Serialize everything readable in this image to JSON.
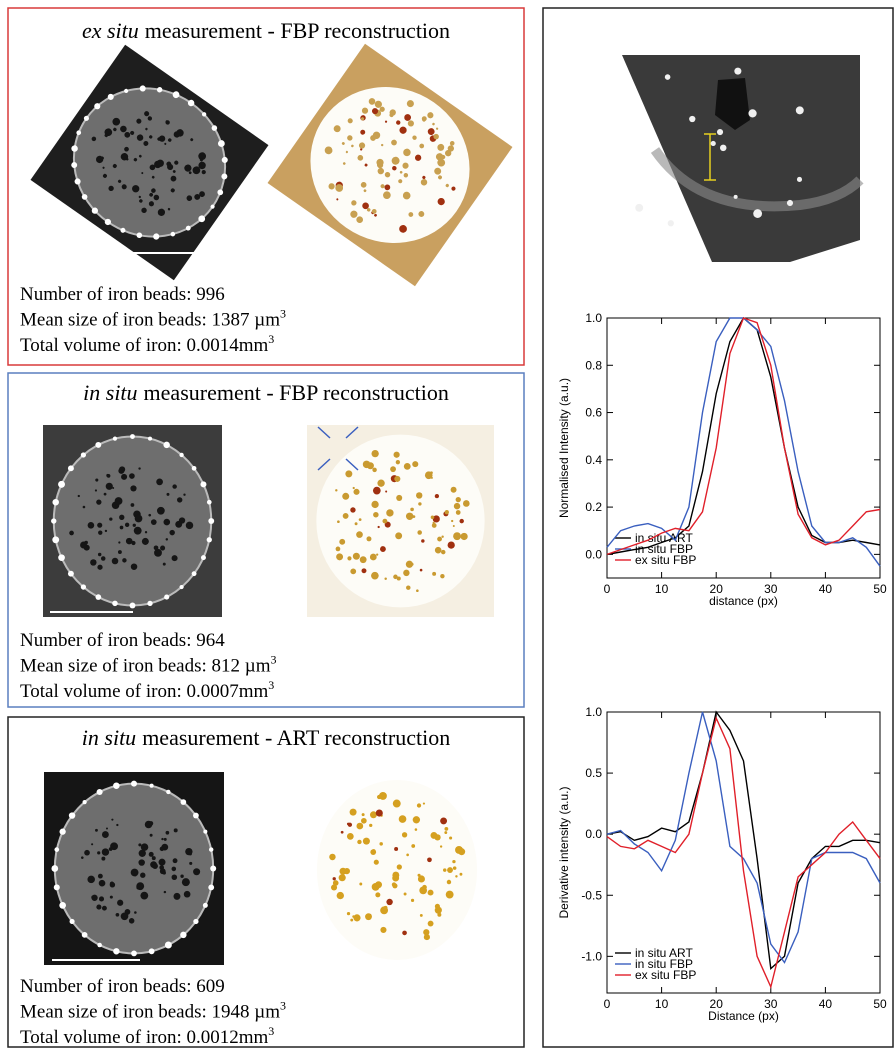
{
  "panels": [
    {
      "title_italic": "ex situ",
      "title_rest": "measurement - FBP reconstruction",
      "stats": [
        {
          "text": "Number of iron beads: 996"
        },
        {
          "text": "Mean size of iron beads: 1387 µm",
          "sup": "3"
        },
        {
          "text": "Total volume of iron: 0.0014mm",
          "sup": "3"
        }
      ]
    },
    {
      "title_italic": "in situ",
      "title_rest": "measurement - FBP reconstruction",
      "stats": [
        {
          "text": "Number of iron beads: 964"
        },
        {
          "text": "Mean size of iron beads: 812 µm",
          "sup": "3"
        },
        {
          "text": "Total volume of iron: 0.0007mm",
          "sup": "3"
        }
      ]
    },
    {
      "title_italic": "in situ",
      "title_rest": "measurement - ART reconstruction",
      "stats": [
        {
          "text": "Number of iron beads: 609"
        },
        {
          "text": "Mean size of iron beads: 1948 µm",
          "sup": "3"
        },
        {
          "text": "Total volume of iron: 0.0012mm",
          "sup": "3"
        }
      ]
    }
  ],
  "chart_data": [
    {
      "type": "line",
      "xlabel": "distance (px)",
      "ylabel": "Normalised Intensity (a.u.)",
      "x": [
        0,
        2.5,
        5,
        7.5,
        10,
        12.5,
        15,
        17.5,
        20,
        22.5,
        25,
        27.5,
        30,
        32.5,
        35,
        37.5,
        40,
        42.5,
        45,
        47.5,
        50
      ],
      "xlim": [
        0,
        50
      ],
      "xticks": [
        0,
        10,
        20,
        30,
        40,
        50
      ],
      "ylim": [
        -0.1,
        1.0
      ],
      "yticks": [
        {
          "value": 0,
          "label": "0.0"
        },
        0.2,
        0.4,
        0.6,
        0.8,
        {
          "value": 1,
          "label": "1.0"
        }
      ],
      "legend": "lower left",
      "series": [
        {
          "name": "in situ ART",
          "color": "#000000",
          "values": [
            0.0,
            0.01,
            0.02,
            0.03,
            0.05,
            0.07,
            0.12,
            0.35,
            0.68,
            0.9,
            1.0,
            0.95,
            0.75,
            0.45,
            0.2,
            0.08,
            0.05,
            0.05,
            0.06,
            0.05,
            0.04
          ]
        },
        {
          "name": "in situ FBP",
          "color": "#3a5fbf",
          "values": [
            0.03,
            0.1,
            0.12,
            0.13,
            0.11,
            0.06,
            0.2,
            0.6,
            0.9,
            1.0,
            1.0,
            0.95,
            0.88,
            0.65,
            0.35,
            0.12,
            0.05,
            0.05,
            0.07,
            0.03,
            -0.05
          ]
        },
        {
          "name": "ex situ FBP",
          "color": "#e0202a",
          "values": [
            0.0,
            0.02,
            0.04,
            0.06,
            0.09,
            0.11,
            0.1,
            0.18,
            0.45,
            0.85,
            1.0,
            0.98,
            0.8,
            0.45,
            0.17,
            0.07,
            0.04,
            0.06,
            0.12,
            0.18,
            0.19
          ]
        }
      ]
    },
    {
      "type": "line",
      "xlabel": "Distance (px)",
      "ylabel": "Derivative intensity (a.u.)",
      "x": [
        0,
        2.5,
        5,
        7.5,
        10,
        12.5,
        15,
        17.5,
        20,
        22.5,
        25,
        27.5,
        30,
        32.5,
        35,
        37.5,
        40,
        42.5,
        45,
        47.5,
        50
      ],
      "xlim": [
        0,
        50
      ],
      "xticks": [
        0,
        10,
        20,
        30,
        40,
        50
      ],
      "ylim": [
        -1.3,
        1.0
      ],
      "yticks": [
        {
          "value": -1,
          "label": "-1.0"
        },
        -0.5,
        {
          "value": 0,
          "label": "0.0"
        },
        0.5,
        {
          "value": 1,
          "label": "1.0"
        }
      ],
      "legend": "lower left",
      "series": [
        {
          "name": "in situ ART",
          "color": "#000000",
          "values": [
            0.0,
            0.02,
            -0.05,
            -0.02,
            0.05,
            0.02,
            0.1,
            0.5,
            1.0,
            0.85,
            0.6,
            -0.2,
            -1.1,
            -1.0,
            -0.4,
            -0.2,
            -0.1,
            -0.1,
            -0.05,
            -0.05,
            -0.07
          ]
        },
        {
          "name": "in situ FBP",
          "color": "#3a5fbf",
          "values": [
            0.0,
            0.03,
            -0.08,
            -0.15,
            -0.3,
            -0.05,
            0.5,
            1.0,
            0.6,
            -0.1,
            -0.2,
            -0.4,
            -0.9,
            -1.05,
            -0.8,
            -0.2,
            -0.15,
            -0.15,
            -0.15,
            -0.2,
            -0.4
          ]
        },
        {
          "name": "ex situ FBP",
          "color": "#e0202a",
          "values": [
            -0.02,
            -0.1,
            -0.12,
            -0.05,
            -0.1,
            -0.15,
            0.0,
            0.5,
            0.95,
            0.7,
            -0.3,
            -1.0,
            -1.25,
            -0.8,
            -0.35,
            -0.25,
            -0.15,
            0.0,
            0.1,
            -0.05,
            -0.2
          ]
        }
      ]
    }
  ]
}
